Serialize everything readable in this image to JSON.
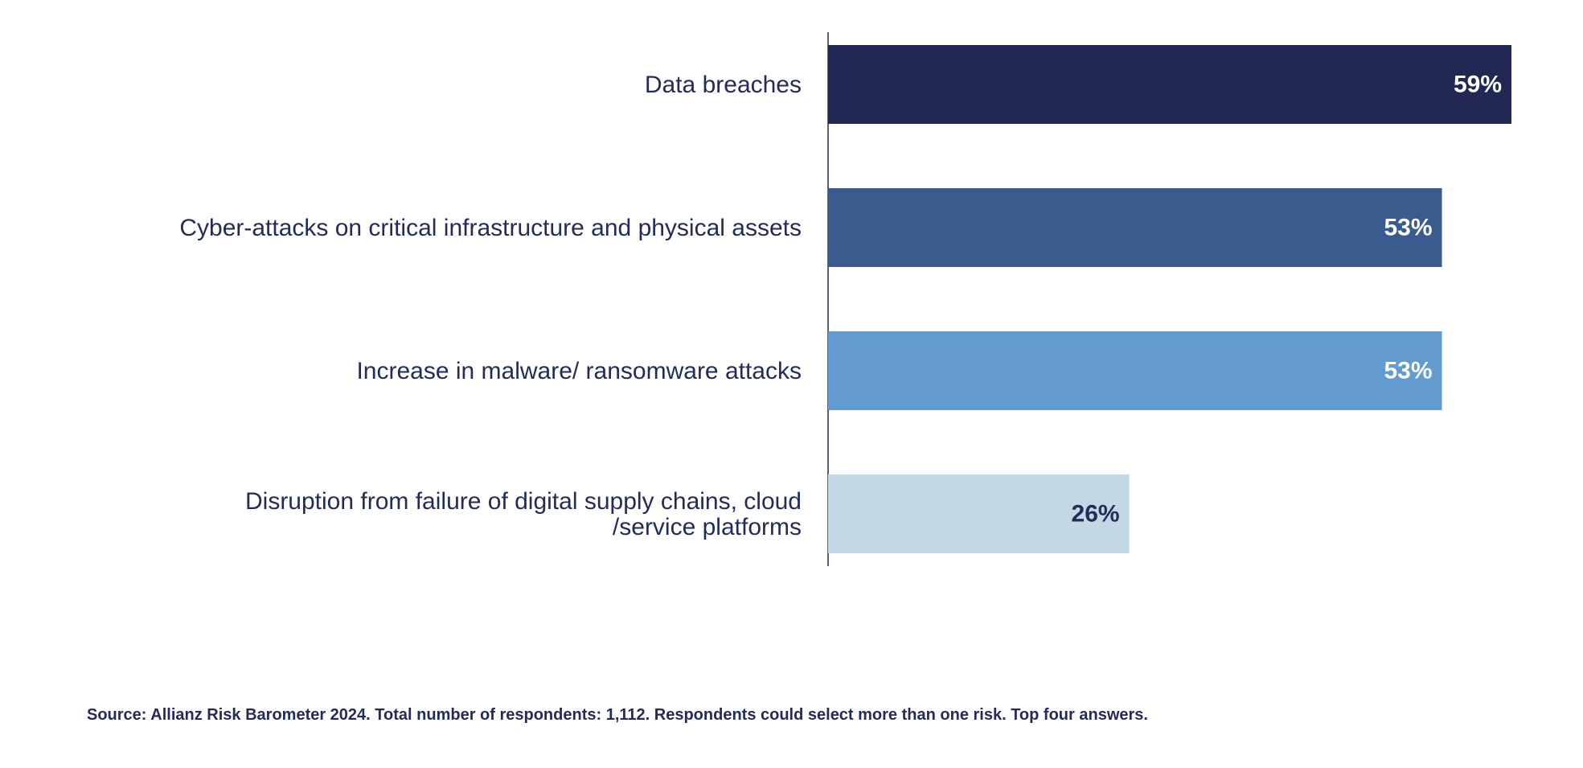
{
  "chart_data": {
    "type": "bar",
    "orientation": "horizontal",
    "categories": [
      "Data breaches",
      "Cyber-attacks on critical infrastructure and physical assets",
      "Increase in malware/ ransomware attacks",
      "Disruption from failure of digital supply chains, cloud\n/service platforms"
    ],
    "values": [
      59,
      53,
      53,
      26
    ],
    "value_labels": [
      "59%",
      "53%",
      "53%",
      "26%"
    ],
    "colors": [
      "#212853",
      "#3a5b8e",
      "#629bcf",
      "#c2d9e5"
    ],
    "label_colors": [
      "#ffffff",
      "#ffffff",
      "#ffffff",
      "#232b5a"
    ],
    "xlim": [
      0,
      59
    ],
    "grid": false,
    "legend": "none"
  },
  "source": "Source: Allianz Risk Barometer 2024. Total number of respondents: 1,112. Respondents could select more than one risk. Top four answers."
}
